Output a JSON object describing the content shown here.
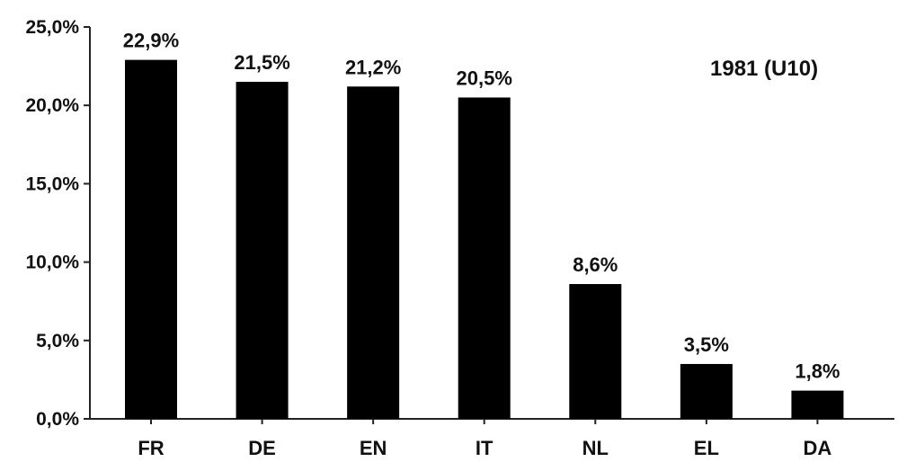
{
  "chart_data": {
    "type": "bar",
    "categories": [
      "FR",
      "DE",
      "EN",
      "IT",
      "NL",
      "EL",
      "DA"
    ],
    "values": [
      22.9,
      21.5,
      21.2,
      20.5,
      8.6,
      3.5,
      1.8
    ],
    "data_labels": [
      "22,9%",
      "21,5%",
      "21,2%",
      "20,5%",
      "8,6%",
      "3,5%",
      "1,8%"
    ],
    "ylim": [
      0,
      25
    ],
    "yticks": [
      0,
      5,
      10,
      15,
      20,
      25
    ],
    "ytick_labels": [
      "0,0%",
      "5,0%",
      "10,0%",
      "15,0%",
      "20,0%",
      "25,0%"
    ],
    "annotation": "1981 (U10)",
    "title": "",
    "xlabel": "",
    "ylabel": "",
    "grid": false,
    "bar_color": "#000000"
  }
}
